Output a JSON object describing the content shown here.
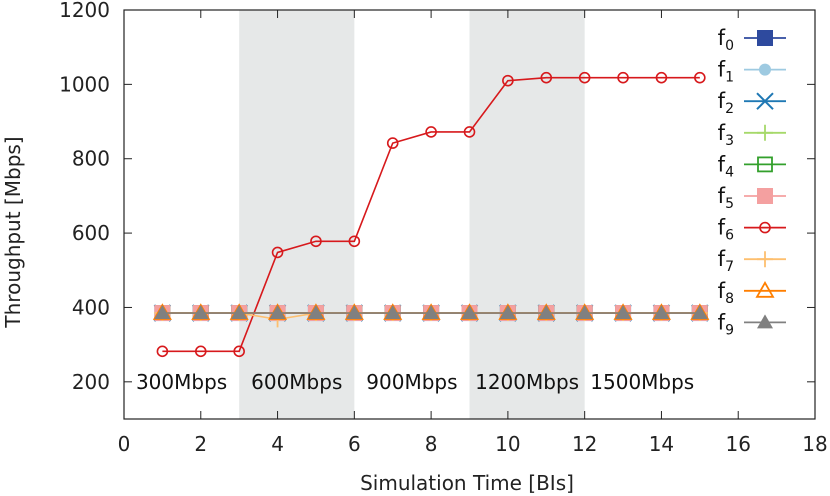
{
  "chart_data": {
    "type": "line",
    "xlabel": "Simulation Time [BIs]",
    "ylabel": "Throughput [Mbps]",
    "xlim": [
      0,
      18
    ],
    "ylim": [
      100,
      1200
    ],
    "xticks": [
      0,
      2,
      4,
      6,
      8,
      10,
      12,
      14,
      16,
      18
    ],
    "yticks": [
      200,
      400,
      600,
      800,
      1000,
      1200
    ],
    "grid": false,
    "legend_position": "right",
    "shaded_bands": [
      {
        "from": 3,
        "to": 6,
        "color": "#e6e8e8"
      },
      {
        "from": 9,
        "to": 12,
        "color": "#e6e8e8"
      }
    ],
    "annotations": [
      {
        "text": "300Mbps",
        "x": 1.5
      },
      {
        "text": "600Mbps",
        "x": 4.5
      },
      {
        "text": "900Mbps",
        "x": 7.5
      },
      {
        "text": "1200Mbps",
        "x": 10.5
      },
      {
        "text": "1500Mbps",
        "x": 13.5
      }
    ],
    "x": [
      1,
      2,
      3,
      4,
      5,
      6,
      7,
      8,
      9,
      10,
      11,
      12,
      13,
      14,
      15
    ],
    "series": [
      {
        "name": "f",
        "sub": "0",
        "marker": "filled-square",
        "color": "#2e4a9e",
        "values": [
          385,
          385,
          385,
          385,
          385,
          385,
          385,
          385,
          385,
          385,
          385,
          385,
          385,
          385,
          385
        ]
      },
      {
        "name": "f",
        "sub": "1",
        "marker": "filled-circle",
        "color": "#9ecae1",
        "values": [
          385,
          385,
          385,
          385,
          385,
          385,
          385,
          385,
          385,
          385,
          385,
          385,
          385,
          385,
          385
        ]
      },
      {
        "name": "f",
        "sub": "2",
        "marker": "x",
        "color": "#1f78b4",
        "values": [
          385,
          385,
          385,
          385,
          385,
          385,
          385,
          385,
          385,
          385,
          385,
          385,
          385,
          385,
          385
        ]
      },
      {
        "name": "f",
        "sub": "3",
        "marker": "plus",
        "color": "#a6d96a",
        "values": [
          385,
          385,
          385,
          385,
          385,
          385,
          385,
          385,
          385,
          385,
          385,
          385,
          385,
          385,
          385
        ]
      },
      {
        "name": "f",
        "sub": "4",
        "marker": "open-square",
        "color": "#33a02c",
        "values": [
          385,
          385,
          385,
          385,
          385,
          385,
          385,
          385,
          385,
          385,
          385,
          385,
          385,
          385,
          385
        ]
      },
      {
        "name": "f",
        "sub": "5",
        "marker": "filled-square",
        "color": "#f4a0a0",
        "values": [
          385,
          385,
          385,
          385,
          385,
          385,
          385,
          385,
          385,
          385,
          385,
          385,
          385,
          385,
          385
        ]
      },
      {
        "name": "f",
        "sub": "6",
        "marker": "open-circle",
        "color": "#d7191c",
        "values": [
          282,
          282,
          282,
          548,
          578,
          578,
          842,
          872,
          872,
          1010,
          1018,
          1018,
          1018,
          1018,
          1018
        ]
      },
      {
        "name": "f",
        "sub": "7",
        "marker": "plus",
        "color": "#fdbf6f",
        "values": [
          385,
          385,
          385,
          368,
          385,
          385,
          385,
          385,
          385,
          385,
          385,
          385,
          385,
          385,
          385
        ]
      },
      {
        "name": "f",
        "sub": "8",
        "marker": "open-triangle",
        "color": "#ff7f00",
        "values": [
          385,
          385,
          385,
          385,
          385,
          385,
          385,
          385,
          385,
          385,
          385,
          385,
          385,
          385,
          385
        ]
      },
      {
        "name": "f",
        "sub": "9",
        "marker": "filled-triangle",
        "color": "#808080",
        "values": [
          385,
          385,
          385,
          385,
          385,
          385,
          385,
          385,
          385,
          385,
          385,
          385,
          385,
          385,
          385
        ]
      }
    ]
  }
}
